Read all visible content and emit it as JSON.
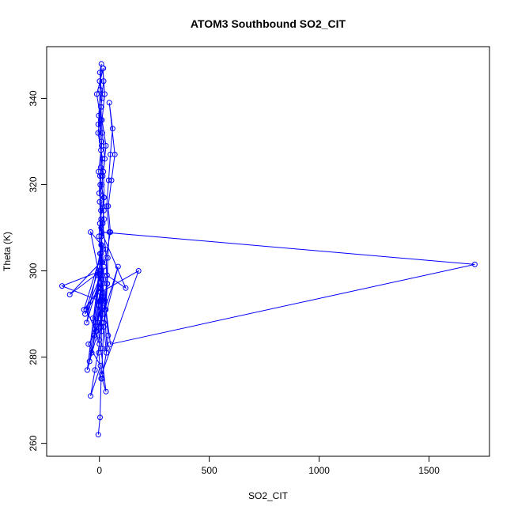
{
  "chart_data": {
    "type": "line",
    "title": "ATOM3 Southbound SO2_CIT",
    "xlabel": "SO2_CIT",
    "ylabel": "Theta (K)",
    "xlim": [
      -240,
      1775
    ],
    "ylim": [
      257,
      352
    ],
    "xticks": [
      0,
      500,
      1000,
      1500
    ],
    "yticks": [
      260,
      280,
      300,
      320,
      340
    ],
    "grid": false,
    "legend": "none",
    "markers": "open-circle",
    "line_color": "#0000ff",
    "series": [
      {
        "x": [
          -5,
          3,
          8,
          -3,
          5,
          12,
          -8,
          15,
          2,
          20,
          -4,
          10,
          6,
          -12,
          18,
          1,
          9,
          -6,
          14,
          4,
          7,
          -2,
          11,
          3,
          16,
          0,
          -7,
          13,
          5,
          8,
          22,
          -1,
          6,
          10,
          -3,
          4,
          9,
          2,
          12,
          -5,
          7,
          15,
          1,
          8,
          3,
          18,
          -2,
          10,
          5,
          6,
          14,
          9,
          20,
          11,
          25,
          13,
          7,
          19,
          16,
          24,
          12,
          30,
          18,
          22,
          15,
          28,
          35,
          26,
          20,
          32,
          40,
          29,
          36,
          38,
          45,
          33,
          42,
          50,
          60,
          45,
          70,
          55,
          40,
          50,
          30,
          35,
          25,
          85,
          20,
          15,
          10,
          178,
          5,
          -30,
          0,
          -20,
          -40,
          5,
          -50,
          10,
          3,
          -170,
          8,
          -135,
          6,
          -60,
          -15,
          10,
          -35,
          5,
          -45,
          2,
          -25,
          15,
          -55,
          8,
          -70,
          3,
          -65,
          6,
          -58,
          10,
          -40,
          15,
          20,
          7,
          30,
          12,
          35,
          18,
          5,
          120,
          10,
          1708,
          50,
          15,
          8,
          3
        ],
        "y": [
          262,
          266,
          275,
          281,
          287,
          293,
          299,
          305,
          311,
          317,
          323,
          329,
          335,
          341,
          347,
          344,
          338,
          332,
          326,
          320,
          314,
          308,
          302,
          296,
          290,
          284,
          288,
          294,
          300,
          306,
          312,
          318,
          324,
          330,
          336,
          342,
          348,
          346,
          340,
          334,
          328,
          322,
          316,
          310,
          304,
          298,
          292,
          286,
          290,
          296,
          302,
          308,
          314,
          320,
          326,
          332,
          338,
          344,
          347,
          341,
          335,
          329,
          323,
          317,
          311,
          305,
          299,
          293,
          287,
          281,
          285,
          291,
          297,
          303,
          309,
          315,
          321,
          327,
          333,
          339,
          327,
          321,
          315,
          309,
          303,
          297,
          291,
          301,
          288,
          282,
          276,
          300,
          295,
          289,
          283,
          277,
          271,
          278,
          283,
          288,
          293,
          296.5,
          300,
          294.5,
          302,
          291,
          286,
          298,
          281,
          292,
          279,
          300,
          285,
          290,
          277,
          304,
          291,
          296,
          290,
          299,
          288,
          306,
          309,
          295,
          301,
          282,
          272,
          275,
          282,
          294,
          300,
          296,
          309,
          301.5,
          283,
          297,
          312,
          322
        ]
      }
    ]
  }
}
